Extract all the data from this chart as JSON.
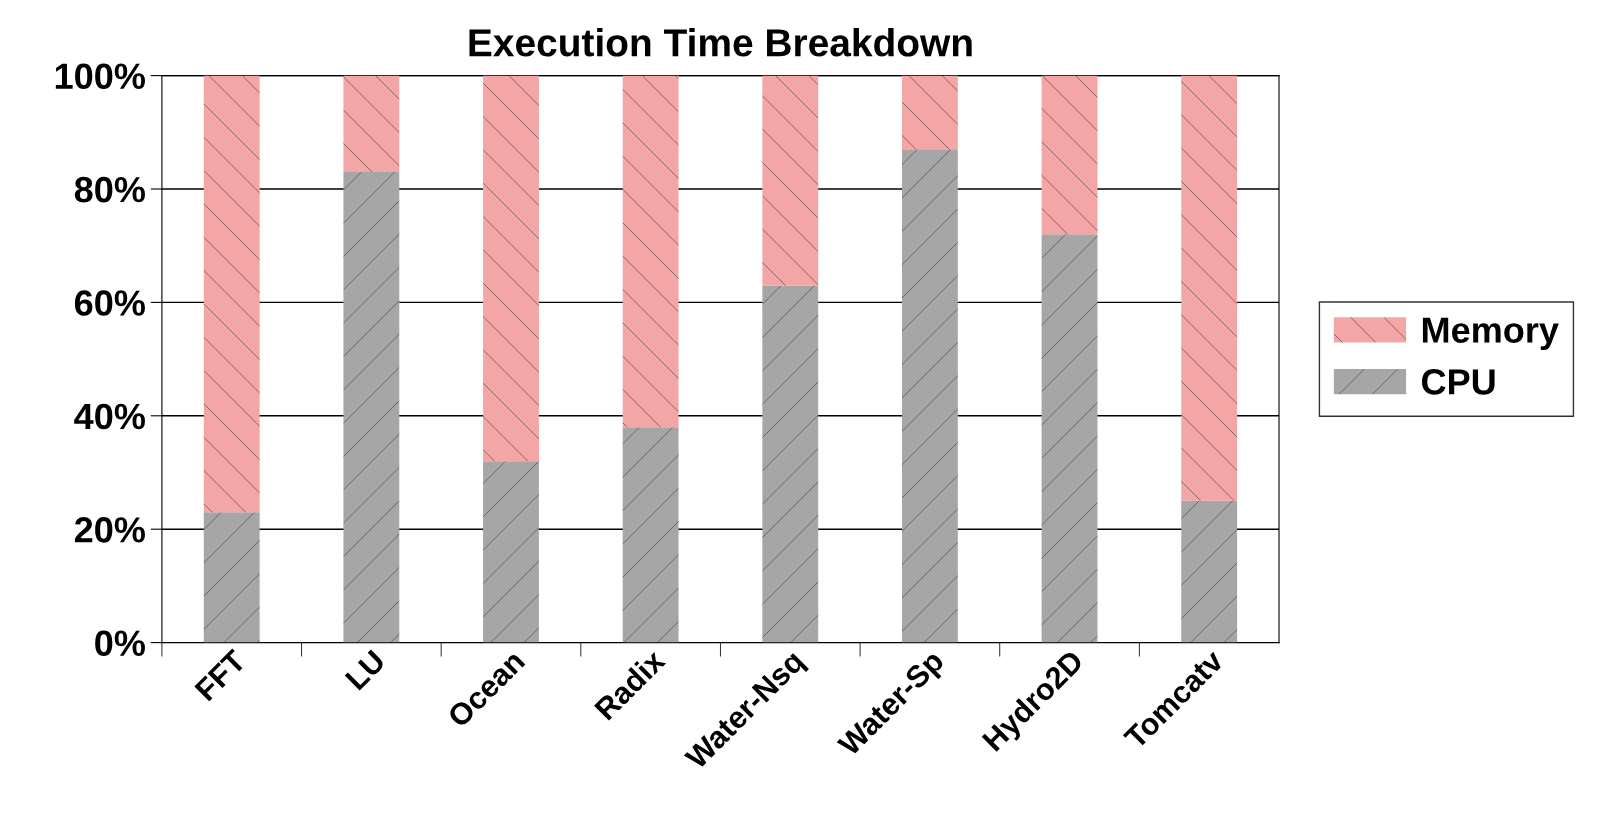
{
  "chart_data": {
    "type": "bar",
    "title": "Execution Time Breakdown",
    "stacked": true,
    "categories": [
      "FFT",
      "LU",
      "Ocean",
      "Radix",
      "Water-Nsq",
      "Water-Sp",
      "Hydro2D",
      "Tomcatv"
    ],
    "series": [
      {
        "name": "CPU",
        "color": "#a6a6a6",
        "values": [
          23,
          83,
          32,
          38,
          63,
          87,
          72,
          25
        ]
      },
      {
        "name": "Memory",
        "color": "#f4a6a6",
        "values": [
          77,
          17,
          68,
          62,
          37,
          13,
          28,
          75
        ]
      }
    ],
    "ylim": [
      0,
      100
    ],
    "yticks": [
      {
        "value": 0,
        "label": "0%"
      },
      {
        "value": 20,
        "label": "20%"
      },
      {
        "value": 40,
        "label": "40%"
      },
      {
        "value": 60,
        "label": "60%"
      },
      {
        "value": 80,
        "label": "80%"
      },
      {
        "value": 100,
        "label": "100%"
      }
    ],
    "grid": "y",
    "legend": "right"
  }
}
